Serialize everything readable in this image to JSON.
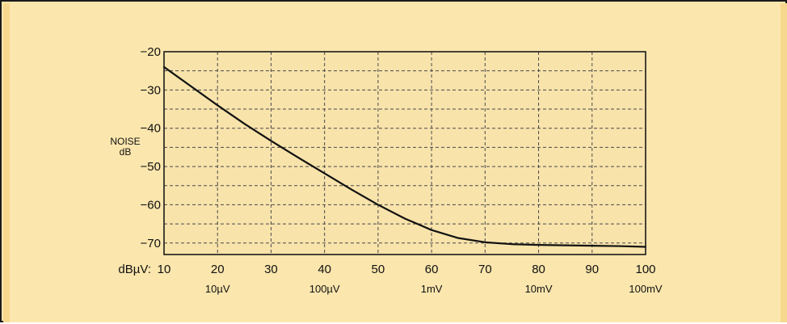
{
  "chart_data": {
    "type": "line",
    "title": "",
    "ylabel": [
      "NOISE",
      "dB"
    ],
    "xlabel_prefix": "dBµV:",
    "x_ticks": [
      10,
      20,
      30,
      40,
      50,
      60,
      70,
      80,
      90,
      100
    ],
    "y_ticks": [
      -20,
      -30,
      -40,
      -50,
      -60,
      -70
    ],
    "x_secondary_ticks": [
      {
        "x": 20,
        "label": "10µV"
      },
      {
        "x": 40,
        "label": "100µV"
      },
      {
        "x": 60,
        "label": "1mV"
      },
      {
        "x": 80,
        "label": "10mV"
      },
      {
        "x": 100,
        "label": "100mV"
      }
    ],
    "xlim": [
      10,
      100
    ],
    "ylim": [
      -73,
      -20
    ],
    "grid": true,
    "series": [
      {
        "values": [
          [
            10,
            -24
          ],
          [
            15,
            -29
          ],
          [
            20,
            -34
          ],
          [
            25,
            -38.8
          ],
          [
            30,
            -43.3
          ],
          [
            35,
            -47.6
          ],
          [
            40,
            -51.8
          ],
          [
            45,
            -56
          ],
          [
            50,
            -60
          ],
          [
            55,
            -63.6
          ],
          [
            60,
            -66.6
          ],
          [
            65,
            -68.7
          ],
          [
            70,
            -69.8
          ],
          [
            75,
            -70.3
          ],
          [
            80,
            -70.5
          ],
          [
            85,
            -70.6
          ],
          [
            90,
            -70.7
          ],
          [
            95,
            -70.8
          ],
          [
            100,
            -71
          ]
        ]
      }
    ]
  },
  "colors": {
    "background": "#fbe6ad",
    "plot_background": "#f8e3ab",
    "line": "#111111",
    "grid": "#4a4a4a"
  }
}
